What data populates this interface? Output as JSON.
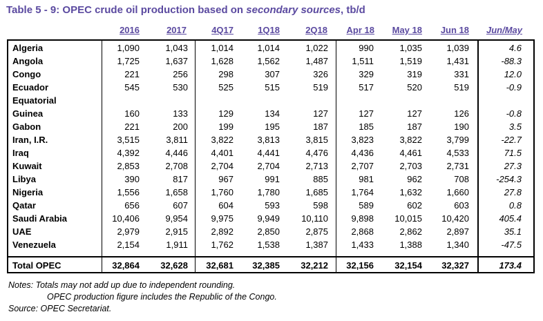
{
  "title": {
    "prefix": "Table 5 - 9: OPEC crude oil production based on ",
    "emphasis": "secondary sources",
    "suffix": ", tb/d"
  },
  "columns": [
    "2016",
    "2017",
    "4Q17",
    "1Q18",
    "2Q18",
    "Apr 18",
    "May 18",
    "Jun 18",
    "Jun/May"
  ],
  "rows": [
    {
      "name": "Algeria",
      "values": [
        "1,090",
        "1,043",
        "1,014",
        "1,014",
        "1,022",
        "990",
        "1,035",
        "1,039",
        "4.6"
      ]
    },
    {
      "name": "Angola",
      "values": [
        "1,725",
        "1,637",
        "1,628",
        "1,562",
        "1,487",
        "1,511",
        "1,519",
        "1,431",
        "-88.3"
      ]
    },
    {
      "name": "Congo",
      "values": [
        "221",
        "256",
        "298",
        "307",
        "326",
        "329",
        "319",
        "331",
        "12.0"
      ]
    },
    {
      "name": "Ecuador",
      "values": [
        "545",
        "530",
        "525",
        "515",
        "519",
        "517",
        "520",
        "519",
        "-0.9"
      ]
    },
    {
      "name": "Equatorial",
      "values": [
        "",
        "",
        "",
        "",
        "",
        "",
        "",
        "",
        ""
      ]
    },
    {
      "name": "Guinea",
      "values": [
        "160",
        "133",
        "129",
        "134",
        "127",
        "127",
        "127",
        "126",
        "-0.8"
      ]
    },
    {
      "name": "Gabon",
      "values": [
        "221",
        "200",
        "199",
        "195",
        "187",
        "185",
        "187",
        "190",
        "3.5"
      ]
    },
    {
      "name": "Iran, I.R.",
      "values": [
        "3,515",
        "3,811",
        "3,822",
        "3,813",
        "3,815",
        "3,823",
        "3,822",
        "3,799",
        "-22.7"
      ]
    },
    {
      "name": "Iraq",
      "values": [
        "4,392",
        "4,446",
        "4,401",
        "4,441",
        "4,476",
        "4,436",
        "4,461",
        "4,533",
        "71.5"
      ]
    },
    {
      "name": "Kuwait",
      "values": [
        "2,853",
        "2,708",
        "2,704",
        "2,704",
        "2,713",
        "2,707",
        "2,703",
        "2,731",
        "27.3"
      ]
    },
    {
      "name": "Libya",
      "values": [
        "390",
        "817",
        "967",
        "991",
        "885",
        "981",
        "962",
        "708",
        "-254.3"
      ]
    },
    {
      "name": "Nigeria",
      "values": [
        "1,556",
        "1,658",
        "1,760",
        "1,780",
        "1,685",
        "1,764",
        "1,632",
        "1,660",
        "27.8"
      ]
    },
    {
      "name": "Qatar",
      "values": [
        "656",
        "607",
        "604",
        "593",
        "598",
        "589",
        "602",
        "603",
        "0.8"
      ]
    },
    {
      "name": "Saudi Arabia",
      "values": [
        "10,406",
        "9,954",
        "9,975",
        "9,949",
        "10,110",
        "9,898",
        "10,015",
        "10,420",
        "405.4"
      ]
    },
    {
      "name": "UAE",
      "values": [
        "2,979",
        "2,915",
        "2,892",
        "2,850",
        "2,875",
        "2,868",
        "2,862",
        "2,897",
        "35.1"
      ]
    },
    {
      "name": "Venezuela",
      "values": [
        "2,154",
        "1,911",
        "1,762",
        "1,538",
        "1,387",
        "1,433",
        "1,388",
        "1,340",
        "-47.5"
      ]
    }
  ],
  "total": {
    "name": "Total  OPEC",
    "values": [
      "32,864",
      "32,628",
      "32,681",
      "32,385",
      "32,212",
      "32,156",
      "32,154",
      "32,327",
      "173.4"
    ]
  },
  "notes": [
    "Notes: Totals may not add up due to independent rounding.",
    "OPEC production figure includes the Republic of the Congo.",
    "Source: OPEC Secretariat."
  ]
}
